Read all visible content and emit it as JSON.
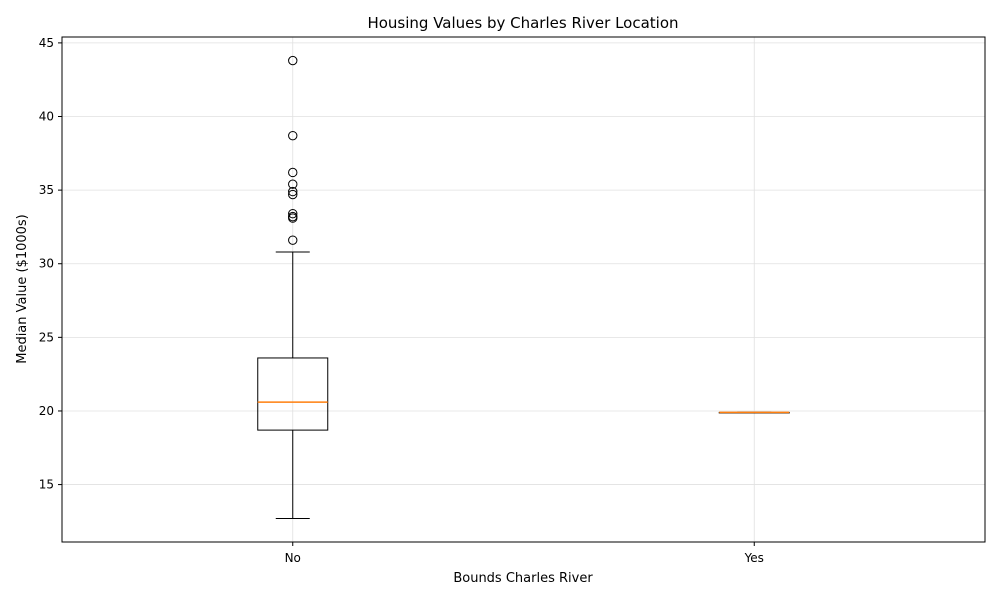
{
  "chart_data": {
    "type": "boxplot",
    "title": "Housing Values by Charles River Location",
    "xlabel": "Bounds Charles River",
    "ylabel": "Median Value ($1000s)",
    "categories": [
      "No",
      "Yes"
    ],
    "ylim": [
      11.1,
      45.4
    ],
    "yticks": [
      15,
      20,
      25,
      30,
      35,
      40,
      45
    ],
    "grid": true,
    "boxes": [
      {
        "category": "No",
        "whisker_low": 12.7,
        "q1": 18.7,
        "median": 20.6,
        "q3": 23.6,
        "whisker_high": 30.8,
        "outliers": [
          31.6,
          33.1,
          33.2,
          33.4,
          34.7,
          34.9,
          35.4,
          36.2,
          38.7,
          43.8
        ]
      },
      {
        "category": "Yes",
        "whisker_low": 19.9,
        "q1": 19.9,
        "median": 19.9,
        "q3": 19.9,
        "whisker_high": 19.9,
        "outliers": []
      }
    ],
    "colors": {
      "box": "#000000",
      "median": "#ff7f0e",
      "grid": "#e0e0e0"
    }
  }
}
